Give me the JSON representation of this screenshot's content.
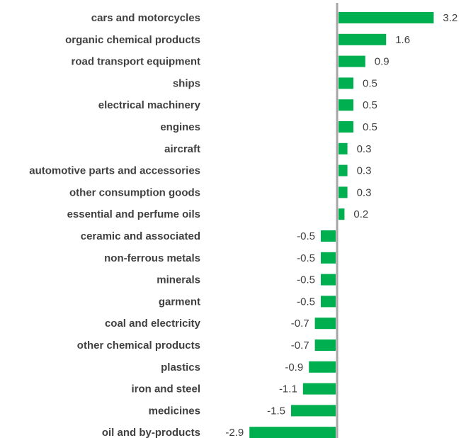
{
  "chart_data": {
    "type": "bar",
    "orientation": "horizontal",
    "categories": [
      "cars and motorcycles",
      "organic chemical products",
      "road transport equipment",
      "ships",
      "electrical machinery",
      "engines",
      "aircraft",
      "automotive parts and accessories",
      "other consumption goods",
      "essential and perfume oils",
      "ceramic and associated",
      "non-ferrous metals",
      "minerals",
      "garment",
      "coal and electricity",
      "other chemical products",
      "plastics",
      "iron and steel",
      "medicines",
      "oil and by-products"
    ],
    "values": [
      3.2,
      1.6,
      0.9,
      0.5,
      0.5,
      0.5,
      0.3,
      0.3,
      0.3,
      0.2,
      -0.5,
      -0.5,
      -0.5,
      -0.5,
      -0.7,
      -0.7,
      -0.9,
      -1.1,
      -1.5,
      -2.9
    ],
    "value_labels": [
      "3.2",
      "1.6",
      "0.9",
      "0.5",
      "0.5",
      "0.5",
      "0.3",
      "0.3",
      "0.3",
      "0.2",
      "-0.5",
      "-0.5",
      "-0.5",
      "-0.5",
      "-0.7",
      "-0.7",
      "-0.9",
      "-1.1",
      "-1.5",
      "-2.9"
    ],
    "xlim": [
      -2.9,
      3.2
    ],
    "grid": false,
    "colors": {
      "bar": "#00b050",
      "axis": "#a6a6a6",
      "text": "#404040"
    }
  }
}
